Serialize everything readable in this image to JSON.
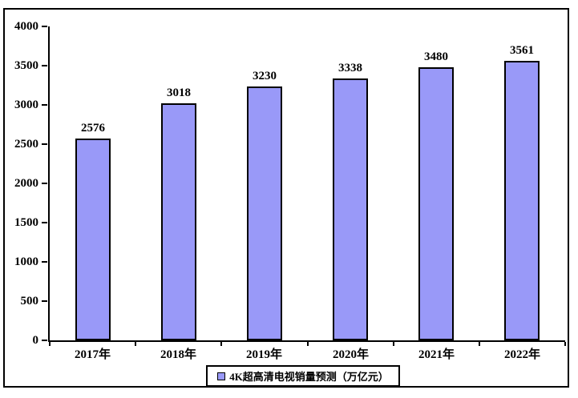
{
  "chart_data": {
    "type": "bar",
    "categories": [
      "2017年",
      "2018年",
      "2019年",
      "2020年",
      "2021年",
      "2022年"
    ],
    "values": [
      2576,
      3018,
      3230,
      3338,
      3480,
      3561
    ],
    "data_labels": [
      "2576",
      "3018",
      "3230",
      "3338",
      "3480",
      "3561"
    ],
    "title": "",
    "xlabel": "",
    "ylabel": "",
    "ylim": [
      0,
      4000
    ],
    "y_ticks": [
      0,
      500,
      1000,
      1500,
      2000,
      2500,
      3000,
      3500,
      4000
    ],
    "y_tick_labels": [
      "0",
      "500",
      "1000",
      "1500",
      "2000",
      "2500",
      "3000",
      "3500",
      "4000"
    ],
    "grid": false,
    "legend_position": "bottom",
    "series": [
      {
        "name": "4K超高清电视销量预测（万亿元）",
        "values": [
          2576,
          3018,
          3230,
          3338,
          3480,
          3561
        ]
      }
    ],
    "colors": {
      "bar_fill": "#9999F8",
      "bar_border": "#000000",
      "axis": "#000000",
      "text": "#000000",
      "background": "#ffffff"
    }
  },
  "legend": {
    "label": "4K超高清电视销量预测（万亿元）",
    "marker": "square-icon"
  }
}
